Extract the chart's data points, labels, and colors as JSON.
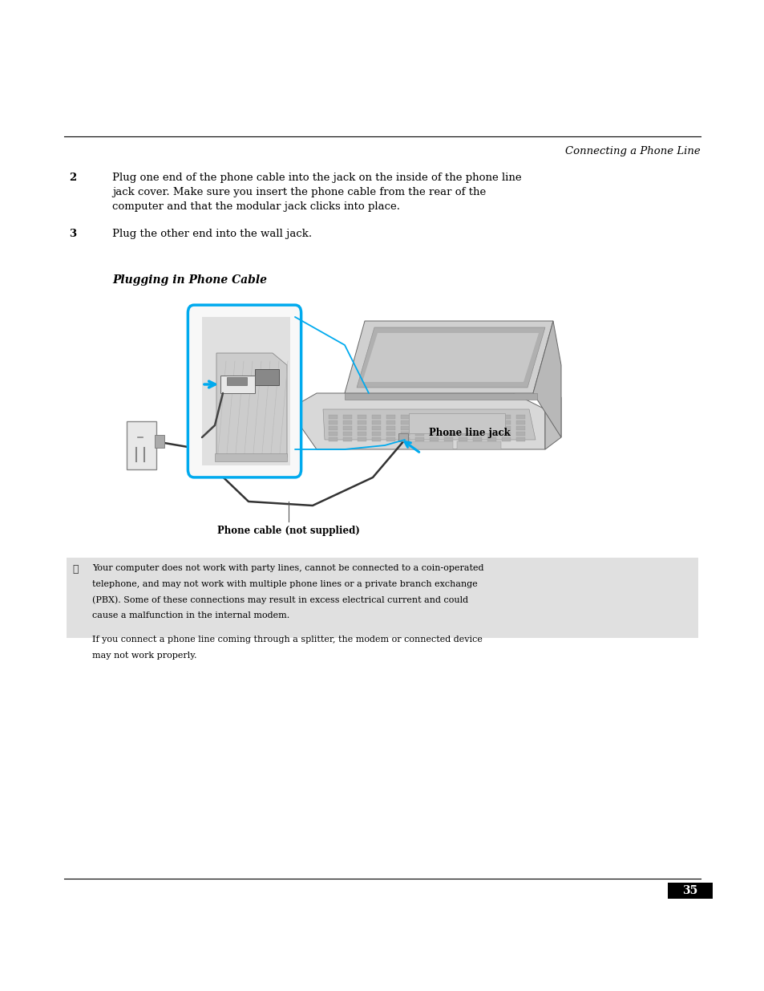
{
  "page_width": 9.54,
  "page_height": 12.35,
  "bg_color": "#ffffff",
  "header_text": "Connecting a Phone Line",
  "step2_num": "2",
  "step2_line1": "Plug one end of the phone cable into the jack on the inside of the phone line",
  "step2_line2": "jack cover. Make sure you insert the phone cable from the rear of the",
  "step2_line3": "computer and that the modular jack clicks into place.",
  "step3_num": "3",
  "step3_text": "Plug the other end into the wall jack.",
  "section_title": "Plugging in Phone Cable",
  "label_phone_line_jack": "Phone line jack",
  "label_phone_cable": "Phone cable (not supplied)",
  "note_icon": "✎",
  "note_text1": "Your computer does not work with party lines, cannot be connected to a coin-operated\ntelephone, and may not work with multiple phone lines or a private branch exchange\n(PBX). Some of these connections may result in excess electrical current and could\ncause a malfunction in the internal modem.",
  "note_text2": "If you connect a phone line coming through a splitter, the modem or connected device\nmay not work properly.",
  "note_bg_color": "#e0e0e0",
  "page_number": "35",
  "body_fontsize": 9.5,
  "header_fontsize": 9.5,
  "section_title_fontsize": 10,
  "note_fontsize": 8.0,
  "label_fontsize": 8.5,
  "page_num_fontsize": 10
}
